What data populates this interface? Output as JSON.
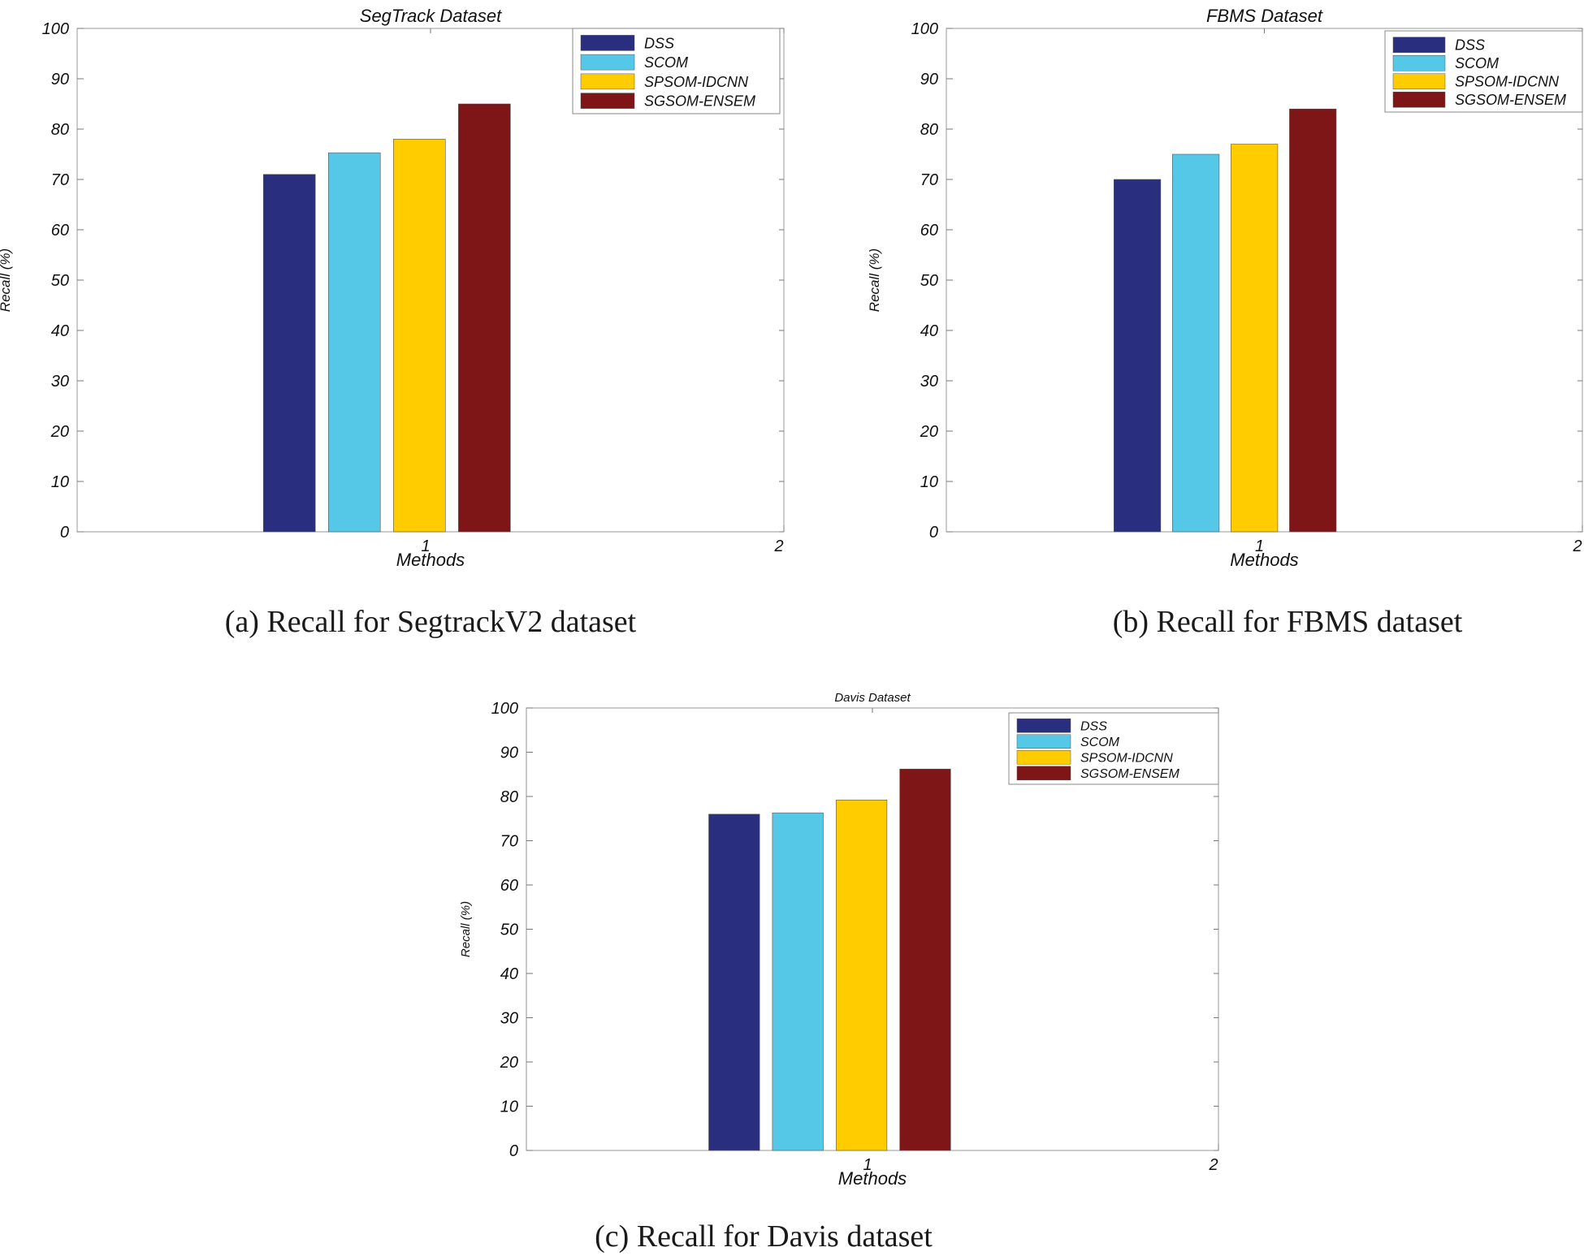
{
  "legend_labels": [
    "DSS",
    "SCOM",
    "SPSOM-IDCNN",
    "SGSOM-ENSEM"
  ],
  "colors": {
    "DSS": "#2a2e7e",
    "SCOM": "#55c8e8",
    "SPSOM-IDCNN": "#ffcc00",
    "SGSOM-ENSEM": "#7e1516",
    "axis": "#999999"
  },
  "chart_data": [
    {
      "type": "bar",
      "title": "SegTrack  Dataset",
      "caption": "(a) Recall for SegtrackV2 dataset",
      "xlabel": "Methods",
      "ylabel": "Recall (%)",
      "ylim": [
        0,
        100
      ],
      "yticks": [
        0,
        10,
        20,
        30,
        40,
        50,
        60,
        70,
        80,
        90,
        100
      ],
      "xticks": [
        "1",
        "2"
      ],
      "categories": [
        "1"
      ],
      "legend": "top-right",
      "series": [
        {
          "name": "DSS",
          "values": [
            71
          ]
        },
        {
          "name": "SCOM",
          "values": [
            75.3
          ]
        },
        {
          "name": "SPSOM-IDCNN",
          "values": [
            78
          ]
        },
        {
          "name": "SGSOM-ENSEM",
          "values": [
            85
          ]
        }
      ]
    },
    {
      "type": "bar",
      "title": "FBMS  Dataset",
      "caption": "(b) Recall for FBMS dataset",
      "xlabel": "Methods",
      "ylabel": "Recall (%)",
      "ylim": [
        0,
        100
      ],
      "yticks": [
        0,
        10,
        20,
        30,
        40,
        50,
        60,
        70,
        80,
        90,
        100
      ],
      "xticks": [
        "1",
        "2"
      ],
      "categories": [
        "1"
      ],
      "legend": "top-right",
      "series": [
        {
          "name": "DSS",
          "values": [
            70
          ]
        },
        {
          "name": "SCOM",
          "values": [
            75
          ]
        },
        {
          "name": "SPSOM-IDCNN",
          "values": [
            77
          ]
        },
        {
          "name": "SGSOM-ENSEM",
          "values": [
            84
          ]
        }
      ]
    },
    {
      "type": "bar",
      "title": "Davis  Dataset",
      "caption": "(c) Recall for Davis dataset",
      "xlabel": "Methods",
      "ylabel": "Recall (%)",
      "ylim": [
        0,
        100
      ],
      "yticks": [
        0,
        10,
        20,
        30,
        40,
        50,
        60,
        70,
        80,
        90,
        100
      ],
      "xticks": [
        "1",
        "2"
      ],
      "categories": [
        "1"
      ],
      "legend": "top-right",
      "series": [
        {
          "name": "DSS",
          "values": [
            76
          ]
        },
        {
          "name": "SCOM",
          "values": [
            76.3
          ]
        },
        {
          "name": "SPSOM-IDCNN",
          "values": [
            79.2
          ]
        },
        {
          "name": "SGSOM-ENSEM",
          "values": [
            86.2
          ]
        }
      ]
    }
  ]
}
